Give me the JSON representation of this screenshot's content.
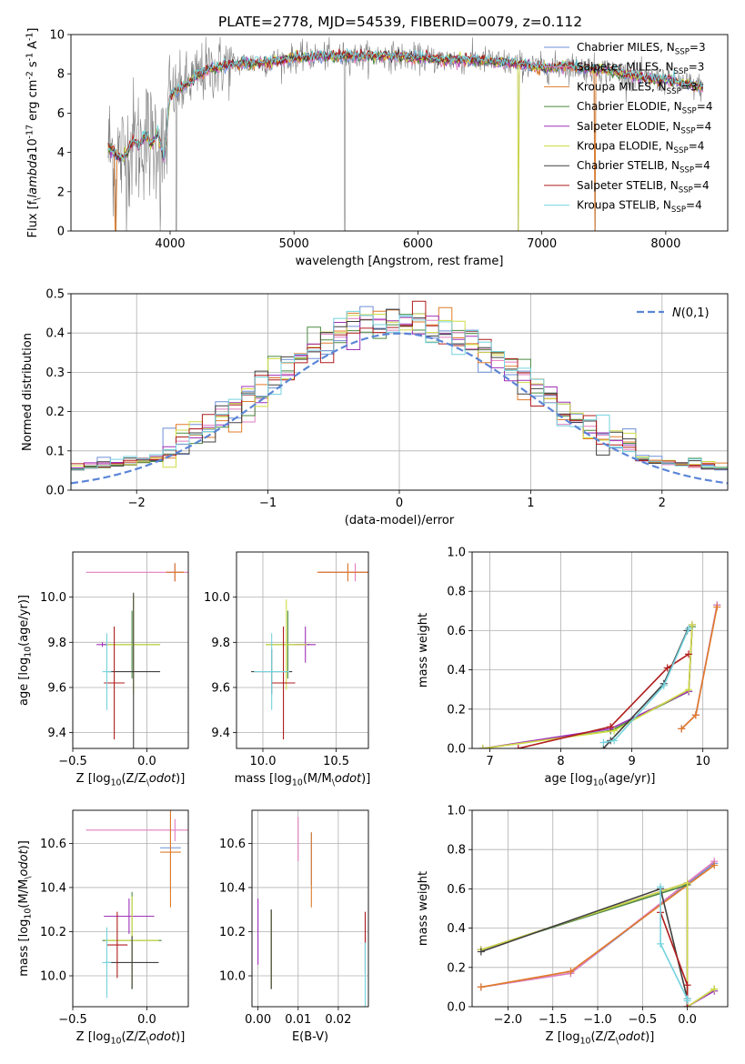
{
  "figure": {
    "title": "PLATE=2778, MJD=54539, FIBERID=0079, z=0.112"
  },
  "series_names": [
    "Chabrier MILES, N$_{SSP}$=3",
    "Salpeter MILES, N$_{SSP}$=3",
    "Kroupa MILES, N$_{SSP}$=3",
    "Chabrier ELODIE, N$_{SSP}$=4",
    "Salpeter ELODIE, N$_{SSP}$=4",
    "Kroupa ELODIE, N$_{SSP}$=4",
    "Chabrier STELIB, N$_{SSP}$=4",
    "Salpeter STELIB, N$_{SSP}$=4",
    "Kroupa STELIB, N$_{SSP}$=4"
  ],
  "colors": {
    "data_spectrum": "#808080",
    "series": [
      "#6d8fd8",
      "#e27dbf",
      "#e07b29",
      "#4a8a3f",
      "#a031b8",
      "#cfdc43",
      "#404040",
      "#b01c1c",
      "#74d3de"
    ],
    "normal_curve": "#5b85d6",
    "grid": "#b0b0b0"
  },
  "chart_data": [
    {
      "id": "spectrum",
      "type": "line",
      "xlabel": "wavelength [Angstrom, rest frame]",
      "ylabel": "Flux [f$_\\lambda$10$^{-17}$ erg cm$^{-2}$ s$^{-1}$ A$^{-1}$]",
      "xlim": [
        3200,
        8500
      ],
      "ylim": [
        0,
        10
      ],
      "xticks": [
        4000,
        5000,
        6000,
        7000,
        8000
      ],
      "yticks": [
        0,
        2,
        4,
        6,
        8,
        10
      ],
      "grid": false,
      "legend": "right",
      "wave_range": [
        3500,
        8300
      ],
      "model_continuum": {
        "x": [
          3500,
          3550,
          3600,
          3650,
          3700,
          3750,
          3800,
          3850,
          3900,
          3950,
          4000,
          4100,
          4200,
          4300,
          4500,
          4800,
          5000,
          5200,
          5500,
          5800,
          6000,
          6300,
          6500,
          6800,
          7000,
          7200,
          7500,
          7800,
          8000,
          8300
        ],
        "y": [
          4.2,
          4.0,
          3.7,
          3.9,
          4.6,
          4.3,
          4.9,
          4.4,
          5.0,
          3.6,
          6.9,
          7.3,
          7.8,
          8.2,
          8.5,
          8.6,
          8.8,
          8.9,
          8.9,
          8.9,
          8.8,
          8.7,
          8.7,
          8.5,
          8.3,
          8.4,
          8.2,
          7.8,
          7.7,
          7.3
        ]
      },
      "zero_spikes": [
        3560,
        3920,
        4050,
        5410,
        6810,
        7430
      ]
    },
    {
      "id": "residuals",
      "type": "histogram",
      "xlabel": "(data-model)/error",
      "ylabel": "Normed distribution",
      "xlim": [
        -2.5,
        2.5
      ],
      "ylim": [
        0,
        0.5
      ],
      "xticks": [
        -2,
        -1,
        0,
        1,
        2
      ],
      "yticks": [
        0.0,
        0.1,
        0.2,
        0.3,
        0.4,
        0.5
      ],
      "grid": true,
      "legend": "top-right",
      "reference_curve": "$\\mathcal{N}(0,1)$",
      "bin_width": 0.1
    },
    {
      "id": "age_vs_Z",
      "type": "errorbar",
      "xlabel": "Z [log$_{10}$(Z/Z$_\\odot$)]",
      "ylabel": "age  [log$_{10}$(age/yr)]",
      "xlim": [
        -0.5,
        0.28
      ],
      "ylim": [
        9.33,
        10.2
      ],
      "xticks": [
        -0.5,
        0.0
      ],
      "yticks": [
        9.4,
        9.6,
        9.8,
        10.0
      ],
      "grid": true,
      "points": [
        {
          "s": 0,
          "x": 0.19,
          "y": 10.11,
          "xerr": 0.06,
          "yerr": 0.04
        },
        {
          "s": 1,
          "x": 0.19,
          "y": 10.11,
          "xerr": 0.6,
          "yerr": 0.04
        },
        {
          "s": 2,
          "x": 0.19,
          "y": 10.11,
          "xerr": 0.06,
          "yerr": 0.04
        },
        {
          "s": 3,
          "x": -0.1,
          "y": 9.79,
          "xerr": 0.19,
          "yerr": 0.15
        },
        {
          "s": 4,
          "x": -0.3,
          "y": 9.79,
          "xerr": 0.04,
          "yerr": 0.01
        },
        {
          "s": 5,
          "x": -0.09,
          "y": 9.79,
          "xerr": 0.18,
          "yerr": 0.22
        },
        {
          "s": 6,
          "x": -0.09,
          "y": 9.67,
          "xerr": 0.18,
          "yerr": 0.35
        },
        {
          "s": 7,
          "x": -0.22,
          "y": 9.62,
          "xerr": 0.07,
          "yerr": 0.25
        },
        {
          "s": 8,
          "x": -0.27,
          "y": 9.67,
          "xerr": 0.03,
          "yerr": 0.17
        }
      ]
    },
    {
      "id": "age_vs_mass",
      "type": "errorbar",
      "xlabel": "mass [log$_{10}$(M/M$_\\odot$)]",
      "ylabel": "",
      "xlim": [
        9.82,
        10.72
      ],
      "ylim": [
        9.33,
        10.2
      ],
      "xticks": [
        10.0,
        10.5
      ],
      "yticks": [
        9.4,
        9.6,
        9.8,
        10.0
      ],
      "grid": true,
      "points": [
        {
          "s": 0,
          "x": 10.58,
          "y": 10.11,
          "xerr": 0.2,
          "yerr": 0.04
        },
        {
          "s": 1,
          "x": 10.63,
          "y": 10.11,
          "xerr": 0.25,
          "yerr": 0.04
        },
        {
          "s": 2,
          "x": 10.58,
          "y": 10.11,
          "xerr": 0.21,
          "yerr": 0.04
        },
        {
          "s": 3,
          "x": 10.17,
          "y": 9.79,
          "xerr": 0.15,
          "yerr": 0.15
        },
        {
          "s": 4,
          "x": 10.29,
          "y": 9.79,
          "xerr": 0.07,
          "yerr": 0.08
        },
        {
          "s": 5,
          "x": 10.16,
          "y": 9.79,
          "xerr": 0.14,
          "yerr": 0.2
        },
        {
          "s": 6,
          "x": 10.06,
          "y": 9.67,
          "xerr": 0.14,
          "yerr": 0.1
        },
        {
          "s": 7,
          "x": 10.14,
          "y": 9.62,
          "xerr": 0.08,
          "yerr": 0.25
        },
        {
          "s": 8,
          "x": 10.06,
          "y": 9.67,
          "xerr": 0.12,
          "yerr": 0.17
        }
      ]
    },
    {
      "id": "weight_vs_age",
      "type": "line",
      "xlabel": "age  [log$_{10}$(age/yr)]",
      "ylabel": "mass weight",
      "xlim": [
        6.75,
        10.35
      ],
      "ylim": [
        0,
        1
      ],
      "xticks": [
        7,
        8,
        9,
        10
      ],
      "yticks": [
        0.0,
        0.2,
        0.4,
        0.6,
        0.8,
        1.0
      ],
      "grid": true,
      "series": [
        {
          "s": 0,
          "x": [
            9.7,
            9.9,
            10.2
          ],
          "y": [
            0.1,
            0.17,
            0.73
          ]
        },
        {
          "s": 1,
          "x": [
            9.7,
            9.9,
            10.2
          ],
          "y": [
            0.1,
            0.17,
            0.73
          ]
        },
        {
          "s": 2,
          "x": [
            9.7,
            9.9,
            10.2
          ],
          "y": [
            0.1,
            0.17,
            0.72
          ]
        },
        {
          "s": 3,
          "x": [
            6.9,
            8.7,
            9.8,
            9.85
          ],
          "y": [
            0.0,
            0.09,
            0.29,
            0.62
          ]
        },
        {
          "s": 4,
          "x": [
            6.9,
            8.7,
            9.8,
            9.85
          ],
          "y": [
            0.0,
            0.1,
            0.29,
            0.63
          ]
        },
        {
          "s": 5,
          "x": [
            6.9,
            8.75,
            9.8,
            9.85
          ],
          "y": [
            0.0,
            0.09,
            0.3,
            0.63
          ]
        },
        {
          "s": 6,
          "x": [
            8.6,
            8.7,
            9.45,
            9.78
          ],
          "y": [
            0.0,
            0.04,
            0.33,
            0.6
          ]
        },
        {
          "s": 7,
          "x": [
            7.4,
            8.7,
            9.5,
            9.8
          ],
          "y": [
            0.0,
            0.11,
            0.41,
            0.48
          ]
        },
        {
          "s": 8,
          "x": [
            8.6,
            8.75,
            9.45,
            9.8
          ],
          "y": [
            0.03,
            0.04,
            0.32,
            0.61
          ]
        }
      ]
    },
    {
      "id": "mass_vs_Z",
      "type": "errorbar",
      "xlabel": "Z [log$_{10}$(Z/Z$_\\odot$)]",
      "ylabel": "mass [log$_{10}$(M/M$_\\odot$)]",
      "xlim": [
        -0.5,
        0.28
      ],
      "ylim": [
        9.86,
        10.75
      ],
      "xticks": [
        -0.5,
        0.0
      ],
      "yticks": [
        10.0,
        10.2,
        10.4,
        10.6
      ],
      "grid": true,
      "points": [
        {
          "s": 0,
          "x": 0.16,
          "y": 10.58,
          "xerr": 0.07,
          "yerr": 0.2
        },
        {
          "s": 1,
          "x": 0.19,
          "y": 10.66,
          "xerr": 0.6,
          "yerr": 0.05
        },
        {
          "s": 2,
          "x": 0.16,
          "y": 10.56,
          "xerr": 0.07,
          "yerr": 0.25
        },
        {
          "s": 3,
          "x": -0.1,
          "y": 10.16,
          "xerr": 0.2,
          "yerr": 0.22
        },
        {
          "s": 4,
          "x": -0.12,
          "y": 10.27,
          "xerr": 0.17,
          "yerr": 0.08
        },
        {
          "s": 5,
          "x": -0.1,
          "y": 10.16,
          "xerr": 0.18,
          "yerr": 0.2
        },
        {
          "s": 6,
          "x": -0.1,
          "y": 10.06,
          "xerr": 0.18,
          "yerr": 0.12
        },
        {
          "s": 7,
          "x": -0.2,
          "y": 10.14,
          "xerr": 0.07,
          "yerr": 0.15
        },
        {
          "s": 8,
          "x": -0.27,
          "y": 10.06,
          "xerr": 0.03,
          "yerr": 0.16
        }
      ]
    },
    {
      "id": "mass_vs_ebv",
      "type": "errorbar",
      "xlabel": "E(B-V)",
      "ylabel": "",
      "xlim": [
        -0.0015,
        0.0275
      ],
      "ylim": [
        9.86,
        10.75
      ],
      "xticks": [
        0.0,
        0.01,
        0.02
      ],
      "yticks": [
        10.0,
        10.2,
        10.4,
        10.6
      ],
      "grid": true,
      "points": [
        {
          "s": 0,
          "x": 0.0133,
          "y": 10.53,
          "xerr": 0,
          "yerr": 0.12
        },
        {
          "s": 1,
          "x": 0.01,
          "y": 10.62,
          "xerr": 0,
          "yerr": 0.1
        },
        {
          "s": 2,
          "x": 0.0133,
          "y": 10.48,
          "xerr": 0,
          "yerr": 0.17
        },
        {
          "s": 3,
          "x": 0.0033,
          "y": 10.12,
          "xerr": 0,
          "yerr": 0.18
        },
        {
          "s": 4,
          "x": 0.0,
          "y": 10.2,
          "xerr": 0,
          "yerr": 0.15
        },
        {
          "s": 5,
          "x": 0.0033,
          "y": 10.12,
          "xerr": 0,
          "yerr": 0.17
        },
        {
          "s": 6,
          "x": 0.0033,
          "y": 10.12,
          "xerr": 0,
          "yerr": 0.18
        },
        {
          "s": 7,
          "x": 0.0267,
          "y": 10.15,
          "xerr": 0,
          "yerr": 0.14
        },
        {
          "s": 8,
          "x": 0.0267,
          "y": 10.0,
          "xerr": 0,
          "yerr": 0.15
        }
      ]
    },
    {
      "id": "weight_vs_Z",
      "type": "line",
      "xlabel": "Z [log$_{10}$(Z/Z$_\\odot$)]",
      "ylabel": "mass weight",
      "xlim": [
        -2.4,
        0.45
      ],
      "ylim": [
        0,
        1
      ],
      "xticks": [
        -2.0,
        -1.5,
        -1.0,
        -0.5,
        0.0
      ],
      "yticks": [
        0.0,
        0.2,
        0.4,
        0.6,
        0.8,
        1.0
      ],
      "grid": true,
      "series": [
        {
          "s": 0,
          "x": [
            -2.3,
            -1.3,
            0.3
          ],
          "y": [
            0.1,
            0.17,
            0.73
          ]
        },
        {
          "s": 1,
          "x": [
            -2.3,
            -1.3,
            0.3
          ],
          "y": [
            0.1,
            0.17,
            0.74
          ]
        },
        {
          "s": 2,
          "x": [
            -2.3,
            -1.3,
            0.3
          ],
          "y": [
            0.1,
            0.18,
            0.72
          ]
        },
        {
          "s": 3,
          "x": [
            -2.3,
            0.0,
            0.0,
            0.3
          ],
          "y": [
            0.29,
            0.62,
            0.0,
            0.09
          ]
        },
        {
          "s": 4,
          "x": [
            -2.3,
            0.0,
            0.0,
            0.3
          ],
          "y": [
            0.29,
            0.63,
            0.0,
            0.08
          ]
        },
        {
          "s": 5,
          "x": [
            -2.3,
            0.0,
            0.0,
            0.3
          ],
          "y": [
            0.29,
            0.63,
            0.0,
            0.09
          ]
        },
        {
          "s": 6,
          "x": [
            -2.3,
            -0.3,
            0.0,
            0.0
          ],
          "y": [
            0.28,
            0.6,
            0.04,
            0.0
          ]
        },
        {
          "s": 7,
          "x": [
            -0.3,
            0.0,
            0.0
          ],
          "y": [
            0.48,
            0.11,
            0.0
          ]
        },
        {
          "s": 8,
          "x": [
            -0.3,
            -0.3,
            0.0,
            0.0
          ],
          "y": [
            0.61,
            0.32,
            0.04,
            0.03
          ]
        }
      ]
    }
  ]
}
